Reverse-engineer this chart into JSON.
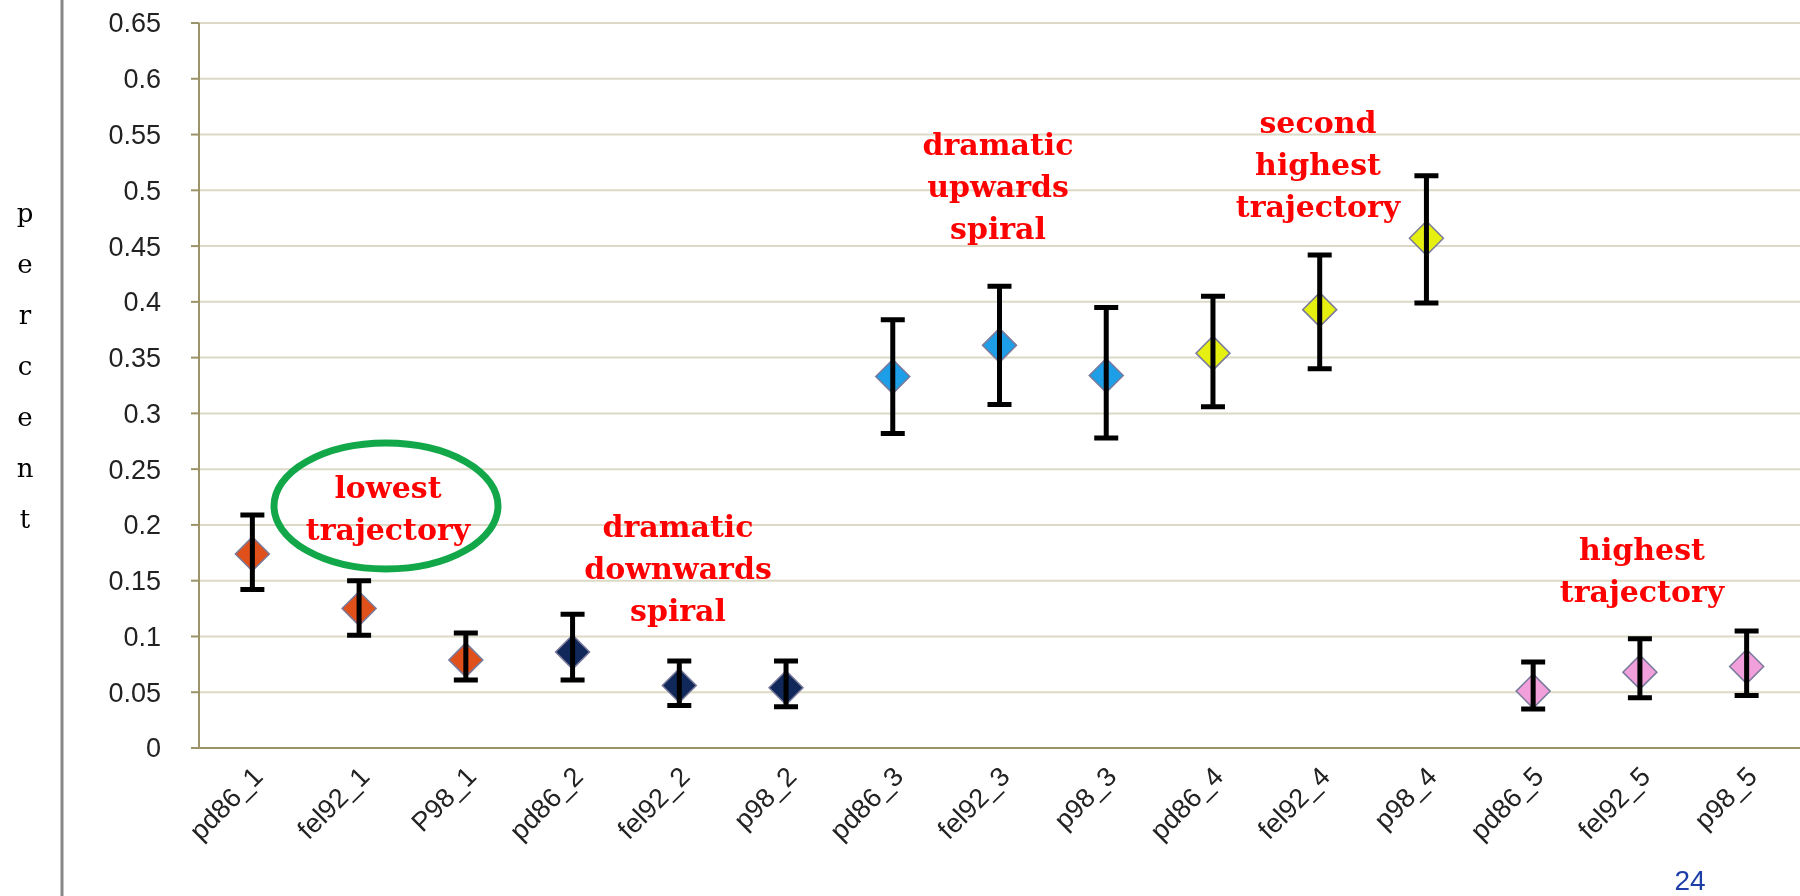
{
  "chart_data": {
    "type": "scatter",
    "ylabel": "percent",
    "marker": "diamond",
    "grid": "y",
    "categories": [
      "pd86_1",
      "fel92_1",
      "P98_1",
      "pd86_2",
      "fel92_2",
      "p98_2",
      "pd86_3",
      "fel92_3",
      "p98_3",
      "pd86_4",
      "fel92_4",
      "p98_4",
      "pd86_5",
      "fel92_5",
      "p98_5"
    ],
    "values": [
      0.174,
      0.125,
      0.079,
      0.086,
      0.056,
      0.054,
      0.333,
      0.361,
      0.334,
      0.354,
      0.393,
      0.457,
      0.051,
      0.068,
      0.073
    ],
    "errors": [
      [
        0.142,
        0.209
      ],
      [
        0.101,
        0.15
      ],
      [
        0.061,
        0.103
      ],
      [
        0.061,
        0.12
      ],
      [
        0.038,
        0.078
      ],
      [
        0.037,
        0.078
      ],
      [
        0.282,
        0.384
      ],
      [
        0.308,
        0.414
      ],
      [
        0.278,
        0.395
      ],
      [
        0.306,
        0.405
      ],
      [
        0.34,
        0.442
      ],
      [
        0.399,
        0.513
      ],
      [
        0.035,
        0.077
      ],
      [
        0.045,
        0.098
      ],
      [
        0.047,
        0.105
      ]
    ],
    "colors": [
      "#e0501a",
      "#e0501a",
      "#e0501a",
      "#10285a",
      "#10285a",
      "#10285a",
      "#1e9ee6",
      "#1e9ee6",
      "#1e9ee6",
      "#e6f010",
      "#e6f010",
      "#e6f010",
      "#f2a0dc",
      "#f2a0dc",
      "#f2a0dc"
    ],
    "ylim": [
      0,
      0.65
    ],
    "yticks": [
      0,
      0.05,
      0.1,
      0.15,
      0.2,
      0.25,
      0.3,
      0.35,
      0.4,
      0.45,
      0.5,
      0.55,
      0.6,
      0.65
    ],
    "annotations": [
      "lowest trajectory",
      "dramatic downwards spiral",
      "dramatic upwards spiral",
      "second highest trajectory",
      "highest trajectory",
      "24"
    ]
  }
}
